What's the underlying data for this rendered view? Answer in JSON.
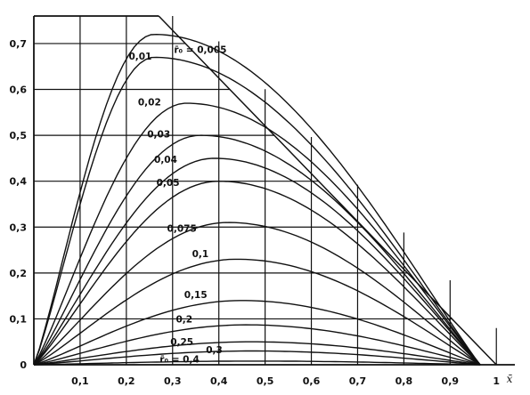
{
  "chart_data": {
    "type": "line",
    "title": "",
    "xlabel": "x̄",
    "ylabel": "",
    "xlim": [
      0,
      1.04
    ],
    "ylim": [
      0,
      0.76
    ],
    "x_ticks": [
      {
        "value": 0.1,
        "label": "0,1"
      },
      {
        "value": 0.2,
        "label": "0,2"
      },
      {
        "value": 0.3,
        "label": "0,3"
      },
      {
        "value": 0.4,
        "label": "0,4"
      },
      {
        "value": 0.5,
        "label": "0,5"
      },
      {
        "value": 0.6,
        "label": "0,6"
      },
      {
        "value": 0.7,
        "label": "0,7"
      },
      {
        "value": 0.8,
        "label": "0,8"
      },
      {
        "value": 0.9,
        "label": "0,9"
      },
      {
        "value": 1.0,
        "label": "1"
      }
    ],
    "y_ticks": [
      {
        "value": 0,
        "label": "0"
      },
      {
        "value": 0.1,
        "label": "0,1"
      },
      {
        "value": 0.2,
        "label": "0,2"
      },
      {
        "value": 0.3,
        "label": "0,3"
      },
      {
        "value": 0.4,
        "label": "0,4"
      },
      {
        "value": 0.5,
        "label": "0,5"
      },
      {
        "value": 0.6,
        "label": "0,6"
      },
      {
        "value": 0.7,
        "label": "0,7"
      }
    ],
    "grid": true,
    "envelope": {
      "x": [
        0.27,
        1.0
      ],
      "y": [
        0.76,
        0.0
      ]
    },
    "series": [
      {
        "name": "r̄₀ = 0,005",
        "peak_x": 0.26,
        "peak_y": 0.72,
        "label_x": 0.36,
        "label_y": 0.68
      },
      {
        "name": "0,01",
        "peak_x": 0.26,
        "peak_y": 0.67,
        "label_x": 0.23,
        "label_y": 0.665
      },
      {
        "name": "0,02",
        "peak_x": 0.33,
        "peak_y": 0.57,
        "label_x": 0.25,
        "label_y": 0.565
      },
      {
        "name": "0,03",
        "peak_x": 0.36,
        "peak_y": 0.5,
        "label_x": 0.27,
        "label_y": 0.495
      },
      {
        "name": "0,04",
        "peak_x": 0.39,
        "peak_y": 0.45,
        "label_x": 0.285,
        "label_y": 0.44
      },
      {
        "name": "0,05",
        "peak_x": 0.4,
        "peak_y": 0.4,
        "label_x": 0.29,
        "label_y": 0.39
      },
      {
        "name": "0,075",
        "peak_x": 0.42,
        "peak_y": 0.31,
        "label_x": 0.32,
        "label_y": 0.29
      },
      {
        "name": "0,1",
        "peak_x": 0.44,
        "peak_y": 0.23,
        "label_x": 0.36,
        "label_y": 0.235
      },
      {
        "name": "0,15",
        "peak_x": 0.45,
        "peak_y": 0.14,
        "label_x": 0.35,
        "label_y": 0.145
      },
      {
        "name": "0,2",
        "peak_x": 0.46,
        "peak_y": 0.087,
        "label_x": 0.325,
        "label_y": 0.092
      },
      {
        "name": "0,25",
        "peak_x": 0.47,
        "peak_y": 0.05,
        "label_x": 0.32,
        "label_y": 0.043
      },
      {
        "name": "0,3",
        "peak_x": 0.47,
        "peak_y": 0.03,
        "label_x": 0.39,
        "label_y": 0.025
      },
      {
        "name": "r̄₀ = 0,4",
        "peak_x": 0.48,
        "peak_y": 0.008,
        "label_x": 0.315,
        "label_y": 0.005
      }
    ]
  }
}
